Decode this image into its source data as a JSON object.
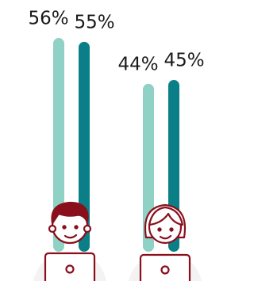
{
  "chart_data": {
    "type": "bar",
    "categories": [
      null,
      null
    ],
    "series": [
      {
        "color": "#8fd1c5",
        "values": [
          56,
          44
        ],
        "value_labels": [
          "56%",
          "44%"
        ]
      },
      {
        "color": "#0b7f87",
        "values": [
          55,
          45
        ],
        "value_labels": [
          "55%",
          "45%"
        ]
      }
    ]
  }
}
